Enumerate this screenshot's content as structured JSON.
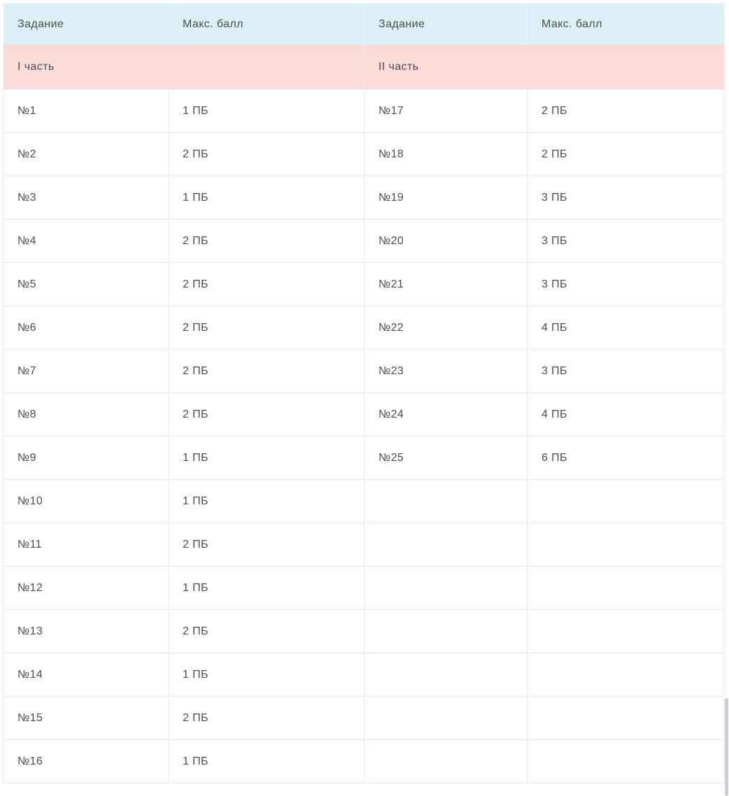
{
  "table": {
    "columns": [
      {
        "label": "Задание"
      },
      {
        "label": "Макс. балл"
      },
      {
        "label": "Задание"
      },
      {
        "label": "Макс. балл"
      }
    ],
    "parts": {
      "left": "I часть",
      "right": "II часть"
    },
    "rows": [
      {
        "left": {
          "task": "№1",
          "score": "1 ПБ"
        },
        "right": {
          "task": "№17",
          "score": "2 ПБ"
        }
      },
      {
        "left": {
          "task": "№2",
          "score": "2 ПБ"
        },
        "right": {
          "task": "№18",
          "score": "2 ПБ"
        }
      },
      {
        "left": {
          "task": "№3",
          "score": "1 ПБ"
        },
        "right": {
          "task": "№19",
          "score": "3 ПБ"
        }
      },
      {
        "left": {
          "task": "№4",
          "score": "2 ПБ"
        },
        "right": {
          "task": "№20",
          "score": "3 ПБ"
        }
      },
      {
        "left": {
          "task": "№5",
          "score": "2 ПБ"
        },
        "right": {
          "task": "№21",
          "score": "3 ПБ"
        }
      },
      {
        "left": {
          "task": "№6",
          "score": "2 ПБ"
        },
        "right": {
          "task": "№22",
          "score": "4 ПБ"
        }
      },
      {
        "left": {
          "task": "№7",
          "score": "2 ПБ"
        },
        "right": {
          "task": "№23",
          "score": "3 ПБ"
        }
      },
      {
        "left": {
          "task": "№8",
          "score": "2 ПБ"
        },
        "right": {
          "task": "№24",
          "score": "4 ПБ"
        }
      },
      {
        "left": {
          "task": "№9",
          "score": "1 ПБ"
        },
        "right": {
          "task": "№25",
          "score": "6 ПБ"
        }
      },
      {
        "left": {
          "task": "№10",
          "score": "1 ПБ"
        },
        "right": {
          "task": "",
          "score": ""
        }
      },
      {
        "left": {
          "task": "№11",
          "score": "2 ПБ"
        },
        "right": {
          "task": "",
          "score": ""
        }
      },
      {
        "left": {
          "task": "№12",
          "score": "1 ПБ"
        },
        "right": {
          "task": "",
          "score": ""
        }
      },
      {
        "left": {
          "task": "№13",
          "score": "2 ПБ"
        },
        "right": {
          "task": "",
          "score": ""
        }
      },
      {
        "left": {
          "task": "№14",
          "score": "1 ПБ"
        },
        "right": {
          "task": "",
          "score": ""
        }
      },
      {
        "left": {
          "task": "№15",
          "score": "2 ПБ"
        },
        "right": {
          "task": "",
          "score": ""
        }
      },
      {
        "left": {
          "task": "№16",
          "score": "1 ПБ"
        },
        "right": {
          "task": "",
          "score": ""
        }
      }
    ],
    "colors": {
      "header_bg": "#daf0f6",
      "part_bg": "#fcdcd9",
      "border": "#e9e9e9",
      "text": "#4d4d4d",
      "scrollbar": "#cdccda"
    }
  }
}
